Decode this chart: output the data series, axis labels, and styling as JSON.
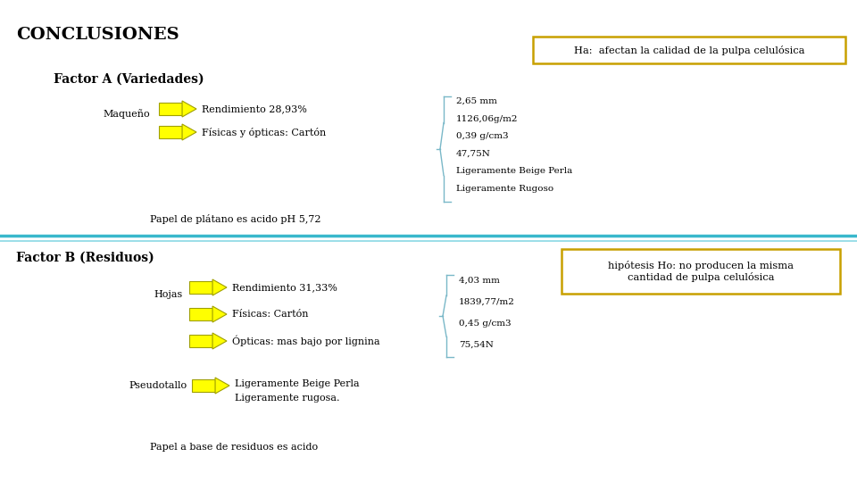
{
  "title": "CONCLUSIONES",
  "white": "#ffffff",
  "box1_text": "Ha:  afectan la calidad de la pulpa celulósica",
  "box2_text": "hipótesis Ho: no producen la misma\ncantidad de pulpa celulósica",
  "box_color": "#c8a000",
  "factor_a_label": "Factor A (Variedades)",
  "factor_b_label": "Factor B (Residuos)",
  "maqueno_label": "Maqueño",
  "hojas_label": "Hojas",
  "pseudotallo_label": "Pseudotallo",
  "arrow_color": "#ffff00",
  "arrow_edge": "#a0a000",
  "line_color1": "#4db8c8",
  "line_color2": "#7ad4de",
  "brace_color": "#7ab8c8",
  "section_a": {
    "rendimiento": "Rendimiento 28,93%",
    "fisicas": "Físicas y ópticas: Cartón",
    "papel": "Papel de plátano es acido pH 5,72",
    "brace_items": [
      "2,65 mm",
      "1126,06g/m2",
      "0,39 g/cm3",
      "47,75N",
      "Ligeramente Beige Perla",
      "Ligeramente Rugoso"
    ]
  },
  "section_b": {
    "rendimiento": "Rendimiento 31,33%",
    "fisicas": "Físicas: Cartón",
    "opticas": "Ópticas: mas bajo por lignina",
    "pseudo_text1": "Ligeramente Beige Perla",
    "pseudo_text2": "Ligeramente rugosa.",
    "papel": "Papel a base de residuos es acido",
    "brace_items": [
      "4,03 mm",
      "1839,77/m2",
      "0,45 g/cm3",
      "75,54N"
    ]
  },
  "title_fontsize": 14,
  "factor_fontsize": 10,
  "label_fontsize": 8,
  "text_fontsize": 8,
  "brace_fontsize": 7.5
}
